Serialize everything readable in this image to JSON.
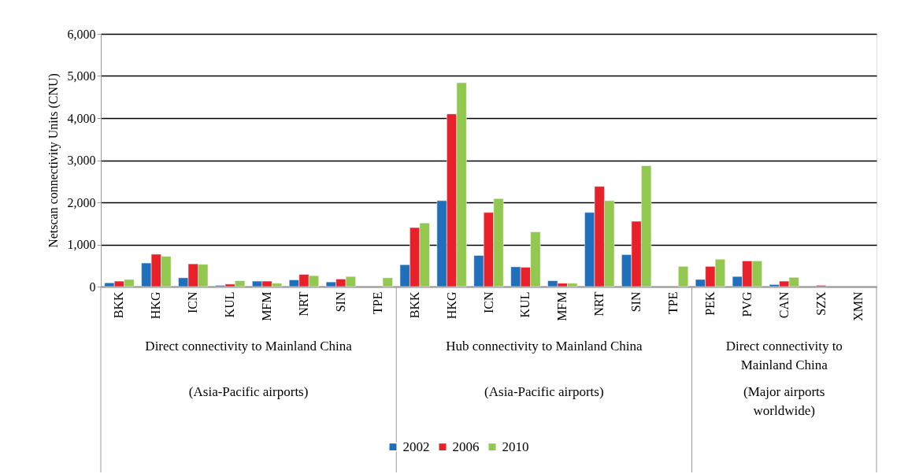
{
  "chart_data": {
    "type": "bar",
    "ylabel": "Netscan connectivity Units (CNU)",
    "categories": [
      "BKK",
      "HKG",
      "ICN",
      "KUL",
      "MFM",
      "NRT",
      "SIN",
      "TPE",
      "BKK",
      "HKG",
      "ICN",
      "KUL",
      "MFM",
      "NRT",
      "SIN",
      "TPE",
      "PEK",
      "PVG",
      "CAN",
      "SZX",
      "XMN"
    ],
    "series": [
      {
        "name": "2002",
        "color": "#1f6fba",
        "values": [
          90,
          560,
          210,
          30,
          130,
          160,
          110,
          null,
          520,
          2040,
          740,
          470,
          140,
          1760,
          760,
          null,
          170,
          240,
          50,
          null,
          null
        ]
      },
      {
        "name": "2006",
        "color": "#e8202a",
        "values": [
          130,
          770,
          540,
          60,
          130,
          290,
          180,
          null,
          1400,
          4100,
          1760,
          460,
          80,
          2380,
          1550,
          null,
          480,
          610,
          130,
          30,
          null
        ]
      },
      {
        "name": "2010",
        "color": "#92c850",
        "values": [
          170,
          720,
          530,
          140,
          80,
          260,
          240,
          210,
          1510,
          4840,
          2090,
          1300,
          80,
          2040,
          2870,
          480,
          650,
          610,
          220,
          null,
          null
        ]
      }
    ],
    "ylim": [
      0,
      6000
    ],
    "yticks": [
      {
        "value": 0,
        "label": "0"
      },
      {
        "value": 1000,
        "label": "1,000"
      },
      {
        "value": 2000,
        "label": "2,000"
      },
      {
        "value": 3000,
        "label": "3,000"
      },
      {
        "value": 4000,
        "label": "4,000"
      },
      {
        "value": 5000,
        "label": "5,000"
      },
      {
        "value": 6000,
        "label": "6,000"
      }
    ],
    "grid": "y",
    "legend": "bottom",
    "annotations": [
      "Direct connectivity to Mainland China",
      "(Asia-Pacific airports)",
      "Hub connectivity to Mainland China",
      "(Asia-Pacific airports)",
      "Direct connectivity  to\nMainland China",
      "(Major airports\nworldwide)"
    ]
  }
}
